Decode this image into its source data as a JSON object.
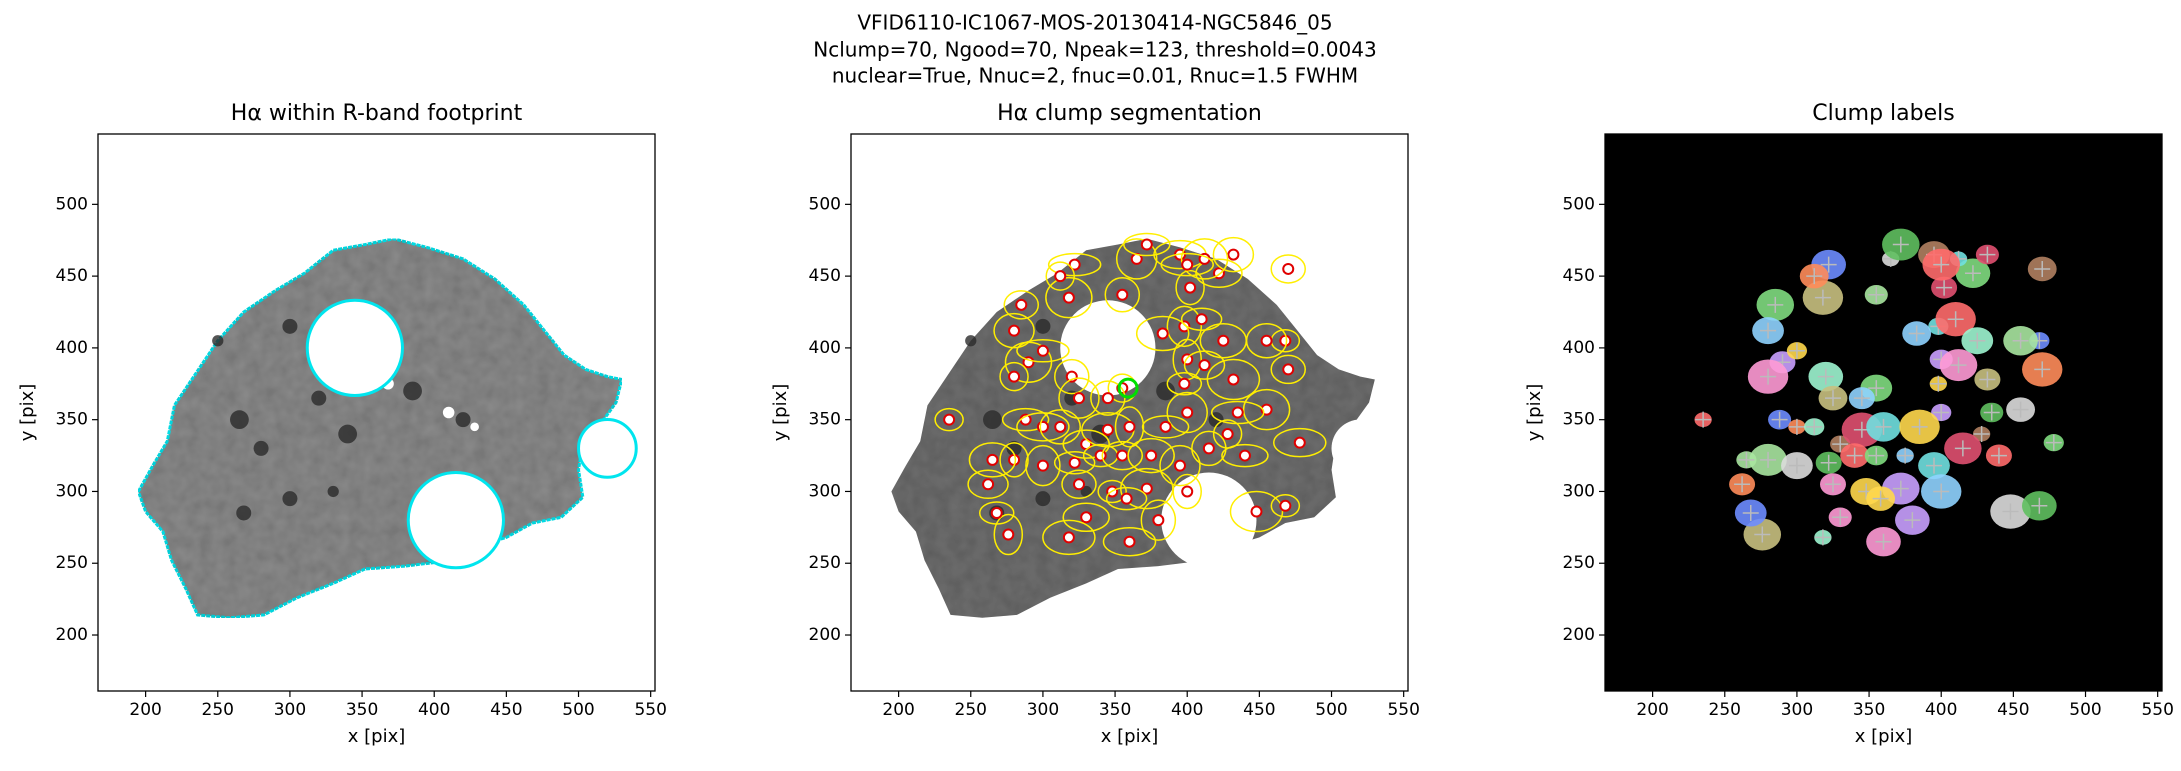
{
  "figure_title": [
    "VFID6110-IC1067-MOS-20130414-NGC5846_05",
    "Nclump=70, Ngood=70, Npeak=123, threshold=0.0043",
    "nuclear=True, Nnuc=2, fnuc=0.01, Rnuc=1.5 FWHM"
  ],
  "chart_data": [
    {
      "type": "image",
      "title": "Hα within R-band footprint",
      "xlabel": "x [pix]",
      "ylabel": "y [pix]",
      "xlim": [
        167,
        553
      ],
      "ylim": [
        161,
        549
      ],
      "xticks": [
        200,
        250,
        300,
        350,
        400,
        450,
        500,
        550
      ],
      "yticks": [
        200,
        250,
        300,
        350,
        400,
        450,
        500
      ],
      "background": "#ffffff",
      "color": "#8c8c8c",
      "outline": "#00e5ee"
    },
    {
      "type": "image",
      "title": "Hα clump segmentation",
      "xlabel": "x [pix]",
      "ylabel": "y [pix]",
      "xlim": [
        167,
        553
      ],
      "ylim": [
        161,
        549
      ],
      "xticks": [
        200,
        250,
        300,
        350,
        400,
        450,
        500,
        550
      ],
      "yticks": [
        200,
        250,
        300,
        350,
        400,
        450,
        500
      ],
      "background": "#ffffff",
      "color": "#6f6f6f",
      "outline": "#ffee00"
    },
    {
      "type": "image",
      "title": "Clump labels",
      "xlabel": "x [pix]",
      "ylabel": "y [pix]",
      "xlim": [
        167,
        553
      ],
      "ylim": [
        161,
        549
      ],
      "xticks": [
        200,
        250,
        300,
        350,
        400,
        450,
        500,
        550
      ],
      "yticks": [
        200,
        250,
        300,
        350,
        400,
        450,
        500
      ],
      "background": "#000000"
    }
  ]
}
